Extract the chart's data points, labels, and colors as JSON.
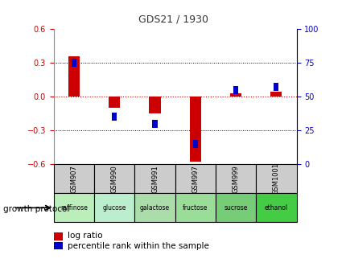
{
  "title": "GDS21 / 1930",
  "samples": [
    "GSM907",
    "GSM990",
    "GSM991",
    "GSM997",
    "GSM999",
    "GSM1001"
  ],
  "protocols": [
    "raffinose",
    "glucose",
    "galactose",
    "fructose",
    "sucrose",
    "ethanol"
  ],
  "log_ratios": [
    0.355,
    -0.095,
    -0.15,
    -0.575,
    0.03,
    0.045
  ],
  "percentile_ranks": [
    75,
    35,
    30,
    15,
    55,
    57
  ],
  "ylim_left": [
    -0.6,
    0.6
  ],
  "ylim_right": [
    0,
    100
  ],
  "log_color": "#cc0000",
  "pct_color": "#0000cc",
  "zero_line_color": "#cc0000",
  "title_color": "#333333",
  "protocol_colors": [
    "#bbeebb",
    "#bbeecc",
    "#aaddaa",
    "#99dd99",
    "#77cc77",
    "#44cc44"
  ],
  "sample_bg": "#cccccc",
  "legend_log_label": "log ratio",
  "legend_pct_label": "percentile rank within the sample",
  "growth_protocol_label": "growth protocol"
}
